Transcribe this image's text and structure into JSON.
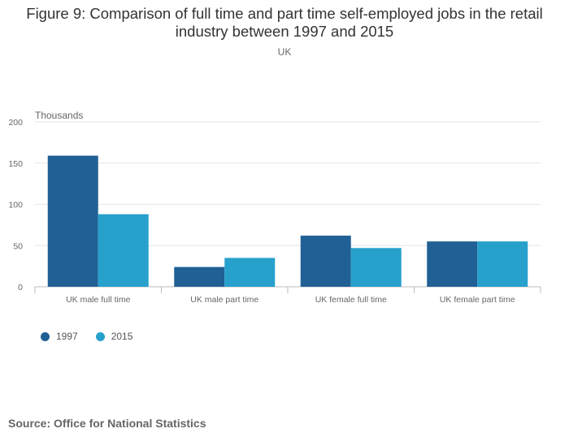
{
  "chart_data": {
    "type": "bar",
    "title": "Figure 9: Comparison of full time and part time self-employed jobs in the retail industry between 1997 and 2015",
    "subtitle": "UK",
    "ylabel": "Thousands",
    "xlabel": "",
    "categories": [
      "UK male full time",
      "UK male part time",
      "UK female full time",
      "UK female part time"
    ],
    "series": [
      {
        "name": "1997",
        "values": [
          159,
          24,
          62,
          55
        ],
        "color": "#206095"
      },
      {
        "name": "2015",
        "values": [
          88,
          35,
          47,
          55
        ],
        "color": "#27a0cc"
      }
    ],
    "ylim": [
      0,
      200
    ],
    "yticks": [
      0,
      50,
      100,
      150,
      200
    ],
    "grid": true,
    "legend_position": "bottom-left"
  },
  "source": "Source: Office for National Statistics"
}
